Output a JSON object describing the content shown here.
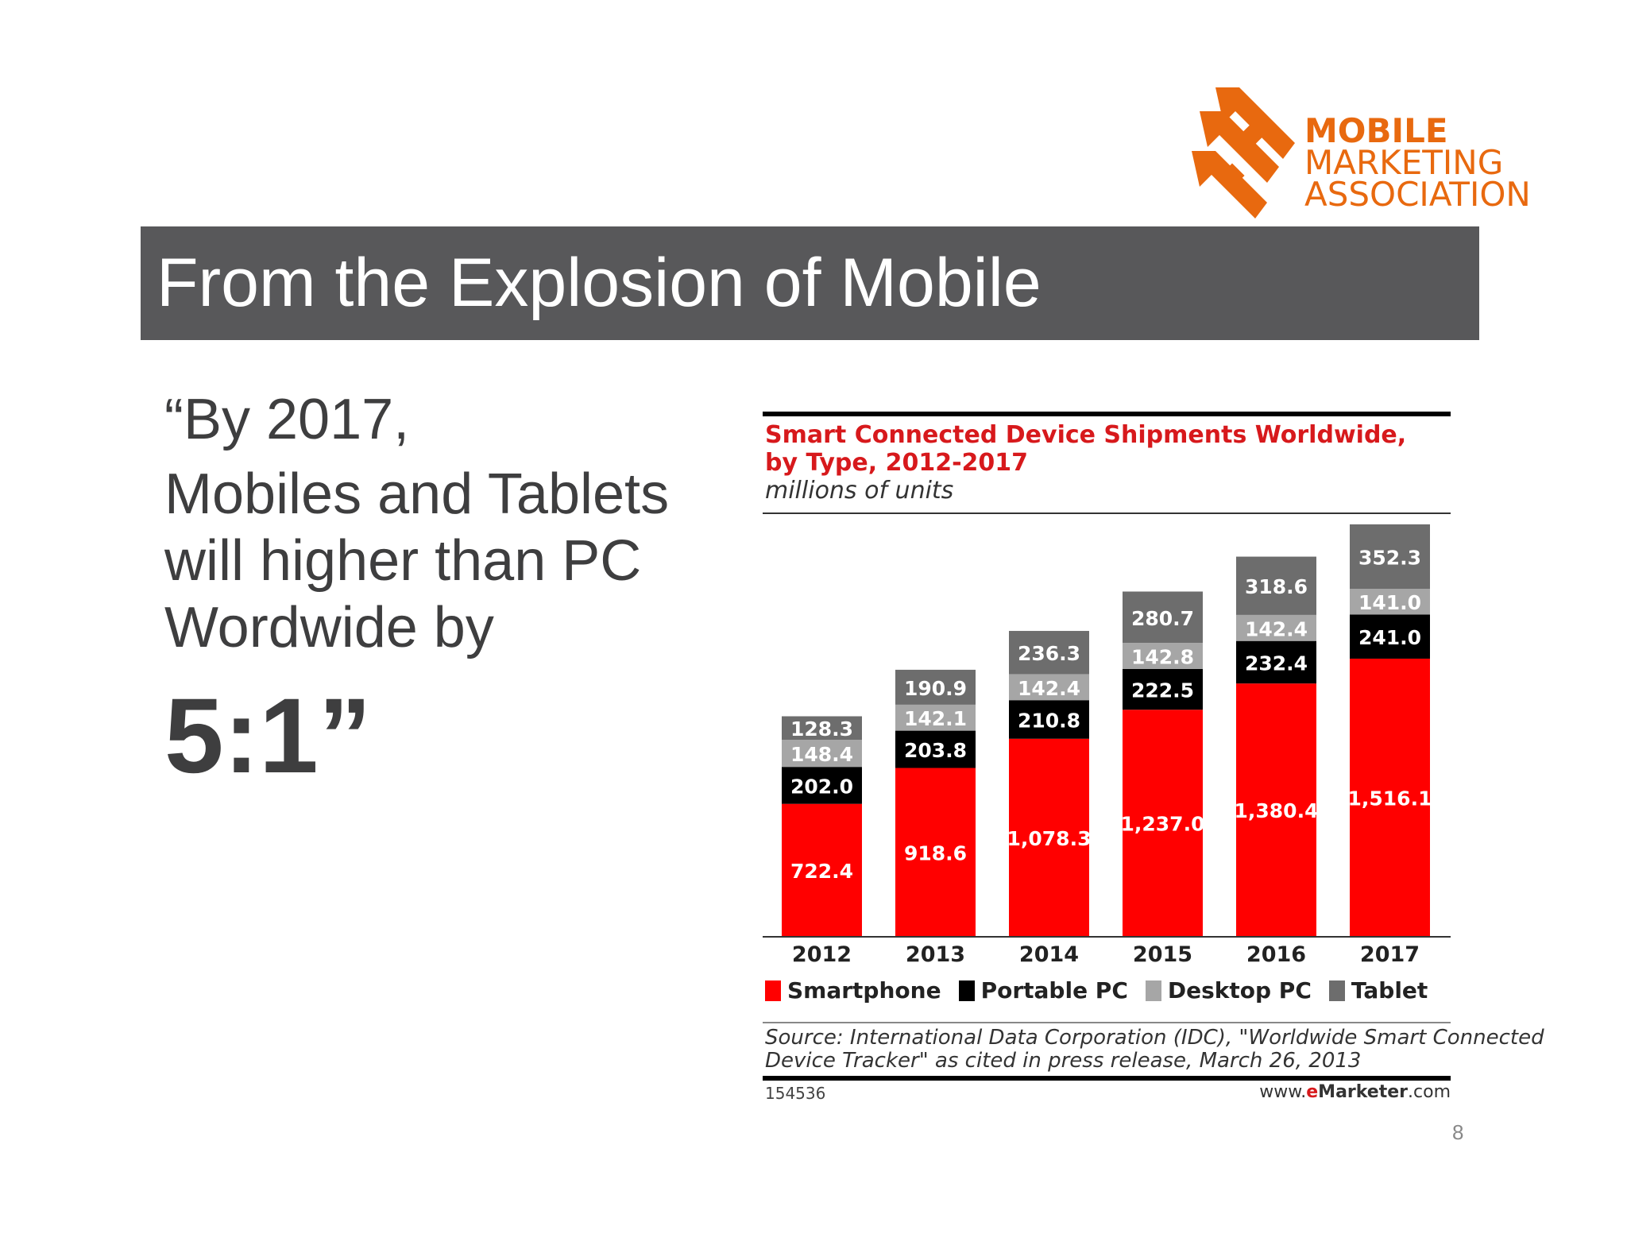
{
  "logo": {
    "name": "MOBILE MARKETING ASSOCIATION",
    "line1": "MOBILE",
    "line2": "MARKETING",
    "line3": "ASSOCIATION",
    "color": "#e8690f"
  },
  "slide": {
    "title": "From the Explosion of Mobile",
    "quote_line1": "“By 2017,",
    "quote_line2": "Mobiles and Tablets",
    "quote_line3": "will higher than PC",
    "quote_line4": "Wordwide by",
    "quote_big": "5:1”",
    "page_number": "8",
    "title_bar_color": "#58585a"
  },
  "chart_data": {
    "type": "bar",
    "stacked": true,
    "title_line1": "Smart Connected Device Shipments Worldwide,",
    "title_line2": "by Type, 2012-2017",
    "subtitle": "millions of units",
    "categories": [
      "2012",
      "2013",
      "2014",
      "2015",
      "2016",
      "2017"
    ],
    "series": [
      {
        "name": "Smartphone",
        "color": "#ff0000",
        "label_color": "#ffffff",
        "values": [
          722.4,
          918.6,
          1078.3,
          1237.0,
          1380.4,
          1516.1
        ],
        "labels": [
          "722.4",
          "918.6",
          "1,078.3",
          "1,237.0",
          "1,380.4",
          "1,516.1"
        ]
      },
      {
        "name": "Portable PC",
        "color": "#000000",
        "label_color": "#ffffff",
        "values": [
          202.0,
          203.8,
          210.8,
          222.5,
          232.4,
          241.0
        ],
        "labels": [
          "202.0",
          "203.8",
          "210.8",
          "222.5",
          "232.4",
          "241.0"
        ]
      },
      {
        "name": "Desktop PC",
        "color": "#a6a6a6",
        "label_color": "#ffffff",
        "values": [
          148.4,
          142.1,
          142.4,
          142.8,
          142.4,
          141.0
        ],
        "labels": [
          "148.4",
          "142.1",
          "142.4",
          "142.8",
          "142.4",
          "141.0"
        ]
      },
      {
        "name": "Tablet",
        "color": "#6d6d6d",
        "label_color": "#ffffff",
        "values": [
          128.3,
          190.9,
          236.3,
          280.7,
          318.6,
          352.3
        ],
        "labels": [
          "128.3",
          "190.9",
          "236.3",
          "280.7",
          "318.6",
          "352.3"
        ]
      }
    ],
    "ylim": [
      0,
      2250
    ],
    "grid": false,
    "legend_position": "bottom",
    "source_line1": "Source: International Data Corporation (IDC), \"Worldwide Smart Connected",
    "source_line2": "Device Tracker\" as cited in press release, March 26, 2013",
    "chart_id": "154536",
    "brand_prefix": "www.",
    "brand_e": "e",
    "brand_main": "Marketer",
    "brand_suffix": ".com"
  }
}
